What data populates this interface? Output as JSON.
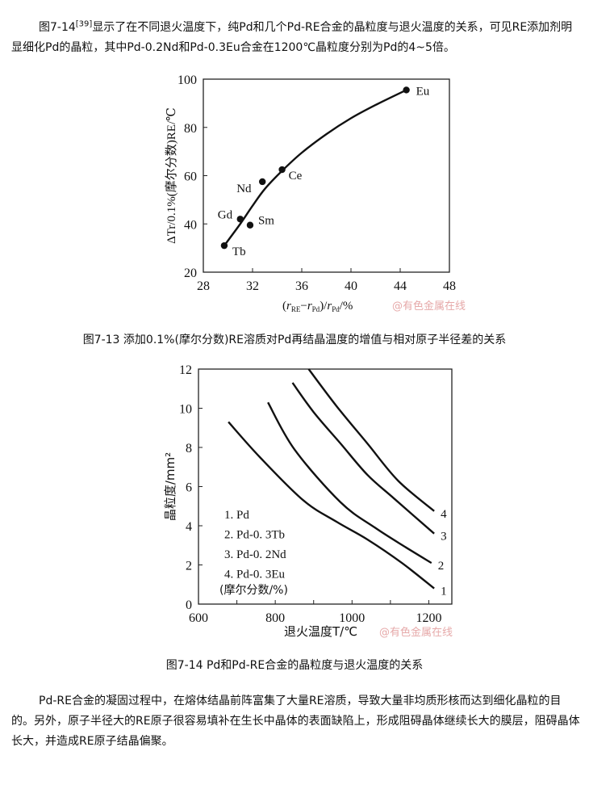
{
  "intro": {
    "prefix": "图7-14",
    "ref": "[39]",
    "text": "显示了在不同退火温度下，纯Pd和几个Pd-RE合金的晶粒度与退火温度的关系，可见RE添加剂明显细化Pd的晶粒，其中Pd-0.2Nd和Pd-0.3Eu合金在1200℃晶粒度分别为Pd的4~5倍。"
  },
  "watermark": "@有色金属在线",
  "figure_7_13": {
    "caption": "图7-13 添加0.1%(摩尔分数)RE溶质对Pd再结晶温度的增值与相对原子半径差的关系"
  },
  "figure_7_14": {
    "caption": "图7-14 Pd和Pd-RE合金的晶粒度与退火温度的关系"
  },
  "conclusion": {
    "text": "Pd-RE合金的凝固过程中，在熔体结晶前阵富集了大量RE溶质，导致大量非均质形核而达到细化晶粒的目的。另外，原子半径大的RE原子很容易填补在生长中晶体的表面缺陷上，形成阻碍晶体继续长大的膜层，阻碍晶体长大，并造成RE原子结晶偏聚。"
  },
  "chart_data": [
    {
      "type": "scatter",
      "title": "",
      "xlabel_parts": [
        "(",
        "r",
        "RE",
        "−",
        "r",
        "Pd",
        ")/",
        "r",
        "Pd",
        "/%"
      ],
      "ylabel": "ΔTr/0.1%(摩尔分数)RE/℃",
      "xlim": [
        28,
        48
      ],
      "ylim": [
        20,
        100
      ],
      "xticks": [
        28,
        32,
        36,
        40,
        44,
        48
      ],
      "yticks": [
        20,
        40,
        60,
        80,
        100
      ],
      "grid": false,
      "points": [
        {
          "label": "Tb",
          "x": 29.7,
          "y": 31
        },
        {
          "label": "Gd",
          "x": 31.0,
          "y": 42
        },
        {
          "label": "Sm",
          "x": 31.8,
          "y": 39.5
        },
        {
          "label": "Nd",
          "x": 32.8,
          "y": 57.5
        },
        {
          "label": "Ce",
          "x": 34.4,
          "y": 62.5
        },
        {
          "label": "Eu",
          "x": 44.5,
          "y": 95.5
        }
      ],
      "fit_curve": [
        [
          29.7,
          31
        ],
        [
          31,
          40
        ],
        [
          32,
          47.5
        ],
        [
          33,
          54.5
        ],
        [
          34.4,
          62
        ],
        [
          36,
          69.5
        ],
        [
          38,
          77.2
        ],
        [
          40,
          83.8
        ],
        [
          42,
          89.3
        ],
        [
          44.5,
          95.5
        ]
      ]
    },
    {
      "type": "line",
      "title": "",
      "xlabel": "退火温度T/℃",
      "ylabel": "晶粒度/mm²",
      "xlim": [
        600,
        1260
      ],
      "ylim": [
        0,
        12
      ],
      "xticks": [
        600,
        800,
        1000,
        1200
      ],
      "xminor": [
        700,
        900,
        1100
      ],
      "yticks": [
        0,
        2,
        4,
        6,
        8,
        10,
        12
      ],
      "grid": false,
      "legend": [
        "1. Pd",
        "2. Pd-0. 3Tb",
        "3. Pd-0. 2Nd",
        "4. Pd-0. 3Eu",
        "(摩尔分数/%)"
      ],
      "legend_position": "bottom-left",
      "series": [
        {
          "name": "1",
          "points": [
            [
              678,
              9.3
            ],
            [
              760,
              7.5
            ],
            [
              873,
              5.3
            ],
            [
              960,
              4.2
            ],
            [
              1040,
              3.3
            ],
            [
              1130,
              2.1
            ],
            [
              1214,
              0.8
            ]
          ]
        },
        {
          "name": "2",
          "points": [
            [
              781,
              10.3
            ],
            [
              850,
              7.9
            ],
            [
              970,
              5.2
            ],
            [
              1060,
              3.9
            ],
            [
              1140,
              2.9
            ],
            [
              1207,
              2.1
            ]
          ]
        },
        {
          "name": "3",
          "points": [
            [
              845,
              11.3
            ],
            [
              900,
              9.8
            ],
            [
              970,
              8.2
            ],
            [
              1040,
              6.6
            ],
            [
              1109,
              5.4
            ],
            [
              1214,
              3.6
            ]
          ]
        },
        {
          "name": "4",
          "points": [
            [
              887,
              12
            ],
            [
              960,
              10.1
            ],
            [
              1040,
              8.2
            ],
            [
              1120,
              6.3
            ],
            [
              1214,
              4.75
            ]
          ]
        }
      ]
    }
  ]
}
